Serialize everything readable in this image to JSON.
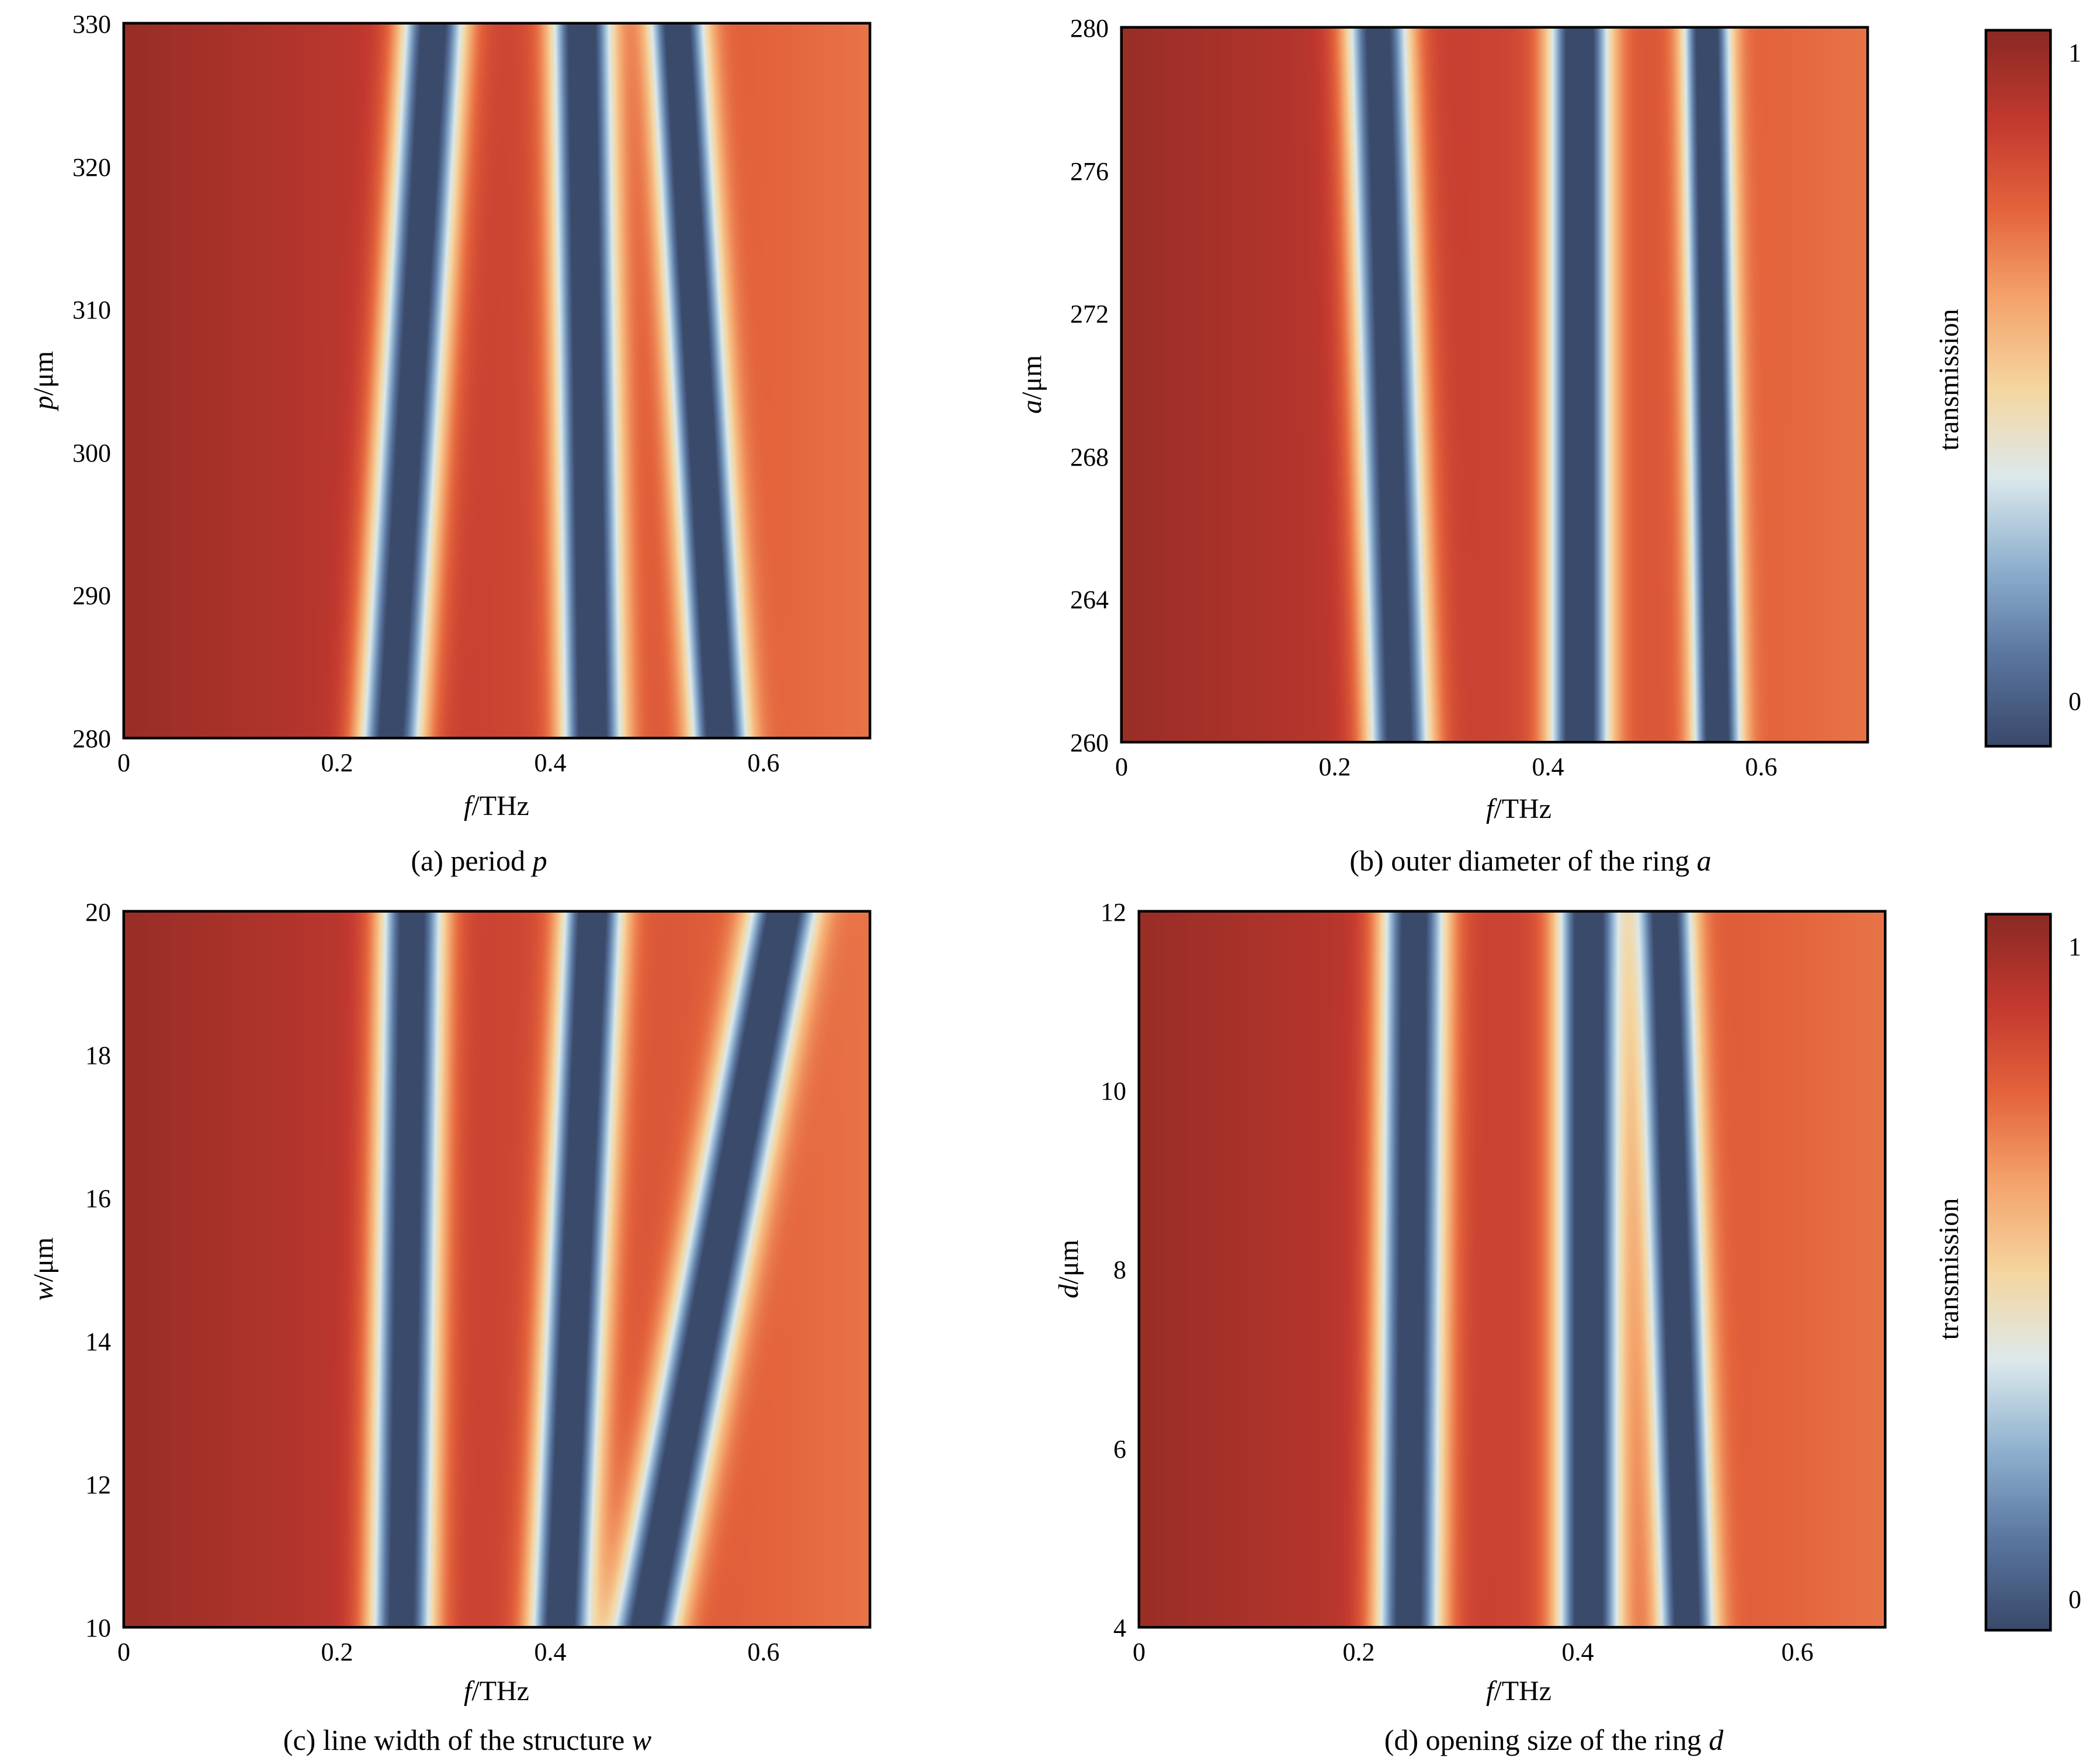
{
  "chart_data": [
    {
      "panel": "a",
      "type": "heatmap",
      "caption": {
        "prefix": "(a) period ",
        "symbol": "p"
      },
      "xlabel": {
        "symbol": "f",
        "unit": "/THz"
      },
      "ylabel": {
        "symbol": "p",
        "unit": "/μm"
      },
      "xlim": [
        0,
        0.7
      ],
      "ylim": [
        280,
        330
      ],
      "xticks": [
        "0",
        "0.2",
        "0.4",
        "0.6"
      ],
      "yticks": [
        "280",
        "290",
        "300",
        "310",
        "320",
        "330"
      ],
      "series": [
        {
          "name": "dip 1",
          "f_at_ymin": 0.25,
          "f_at_ymax": 0.29,
          "width": 0.03,
          "depth": 1.0
        },
        {
          "name": "dip 2",
          "f_at_ymin": 0.44,
          "f_at_ymax": 0.43,
          "width": 0.028,
          "depth": 1.0
        },
        {
          "name": "dip 3",
          "f_at_ymin": 0.56,
          "f_at_ymax": 0.52,
          "width": 0.026,
          "depth": 0.95
        }
      ]
    },
    {
      "panel": "b",
      "type": "heatmap",
      "caption": {
        "prefix": "(b) outer diameter of the ring ",
        "symbol": "a"
      },
      "xlabel": {
        "symbol": "f",
        "unit": "/THz"
      },
      "ylabel": {
        "symbol": "a",
        "unit": "/μm"
      },
      "xlim": [
        0,
        0.7
      ],
      "ylim": [
        260,
        280
      ],
      "xticks": [
        "0",
        "0.2",
        "0.4",
        "0.6"
      ],
      "yticks": [
        "260",
        "264",
        "268",
        "272",
        "276",
        "280"
      ],
      "series": [
        {
          "name": "dip 1",
          "f_at_ymin": 0.26,
          "f_at_ymax": 0.24,
          "width": 0.03,
          "depth": 1.0
        },
        {
          "name": "dip 2",
          "f_at_ymin": 0.43,
          "f_at_ymax": 0.43,
          "width": 0.028,
          "depth": 1.0
        },
        {
          "name": "dip 3",
          "f_at_ymin": 0.56,
          "f_at_ymax": 0.55,
          "width": 0.022,
          "depth": 0.95
        }
      ]
    },
    {
      "panel": "c",
      "type": "heatmap",
      "caption": {
        "prefix": "(c) line width of the structure ",
        "symbol": "w"
      },
      "xlabel": {
        "symbol": "f",
        "unit": "/THz"
      },
      "ylabel": {
        "symbol": "w",
        "unit": "/μm"
      },
      "xlim": [
        0,
        0.7
      ],
      "ylim": [
        10,
        20
      ],
      "xticks": [
        "0",
        "0.2",
        "0.4",
        "0.6"
      ],
      "yticks": [
        "10",
        "12",
        "14",
        "16",
        "18",
        "20"
      ],
      "series": [
        {
          "name": "dip 1",
          "f_at_ymin": 0.26,
          "f_at_ymax": 0.27,
          "width": 0.03,
          "depth": 1.0
        },
        {
          "name": "dip 2",
          "f_at_ymin": 0.41,
          "f_at_ymax": 0.44,
          "width": 0.028,
          "depth": 1.0
        },
        {
          "name": "dip 3",
          "f_at_ymin": 0.49,
          "f_at_ymax": 0.62,
          "width": 0.03,
          "depth": 0.95
        }
      ]
    },
    {
      "panel": "d",
      "type": "heatmap",
      "caption": {
        "prefix": "(d) opening size of the ring ",
        "symbol": "d"
      },
      "xlabel": {
        "symbol": "f",
        "unit": "/THz"
      },
      "ylabel": {
        "symbol": "d",
        "unit": "/μm"
      },
      "xlim": [
        0,
        0.68
      ],
      "ylim": [
        4,
        12
      ],
      "xticks": [
        "0",
        "0.2",
        "0.4",
        "0.6"
      ],
      "yticks": [
        "4",
        "6",
        "8",
        "10",
        "12"
      ],
      "series": [
        {
          "name": "dip 1",
          "f_at_ymin": 0.245,
          "f_at_ymax": 0.25,
          "width": 0.03,
          "depth": 1.0
        },
        {
          "name": "dip 2",
          "f_at_ymin": 0.41,
          "f_at_ymax": 0.41,
          "width": 0.028,
          "depth": 1.0
        },
        {
          "name": "dip 3",
          "f_at_ymin": 0.5,
          "f_at_ymax": 0.48,
          "width": 0.025,
          "depth": 0.95
        }
      ]
    }
  ],
  "colorbar": {
    "label": "transmission",
    "max_label": "1",
    "min_label": "0",
    "range": [
      0,
      1
    ],
    "colors": [
      "#3a4a6b",
      "#5a76a0",
      "#8fb1cf",
      "#dce9ec",
      "#f5d6a0",
      "#f4a46c",
      "#e4643c",
      "#c3392f",
      "#8b2a24"
    ]
  }
}
